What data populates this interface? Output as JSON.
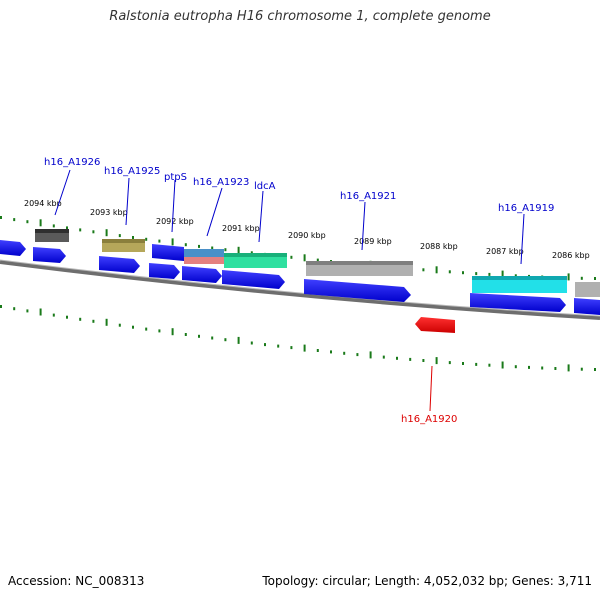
{
  "title": "Ralstonia eutropha H16 chromosome 1, complete genome",
  "accession": "Accession: NC_008313",
  "topology": "Topology: circular; Length: 4,052,032 bp; Genes: 3,711",
  "colors": {
    "cds_blue": "#0000ee",
    "cds_red": "#ee0000",
    "tick_green": "#1a7a1a",
    "backbone": "#888888",
    "label_blue": "#0000cc",
    "label_red": "#dd0000"
  },
  "ruler_labels": [
    "2094 kbp",
    "2093 kbp",
    "2092 kbp",
    "2091 kbp",
    "2090 kbp",
    "2089 kbp",
    "2088 kbp",
    "2087 kbp",
    "2086 kbp"
  ],
  "gene_labels": [
    "h16_A1926",
    "h16_A1925",
    "ptpS",
    "h16_A1923",
    "ldcA",
    "h16_A1921",
    "h16_A1919",
    "h16_A1920"
  ],
  "feature_colors": [
    "#5a5a5a",
    "#b5a75a",
    "#4a90c8",
    "#e48080",
    "#2fe0a0",
    "#b0b0b0",
    "#22e0e8",
    "#b0b0b0"
  ]
}
